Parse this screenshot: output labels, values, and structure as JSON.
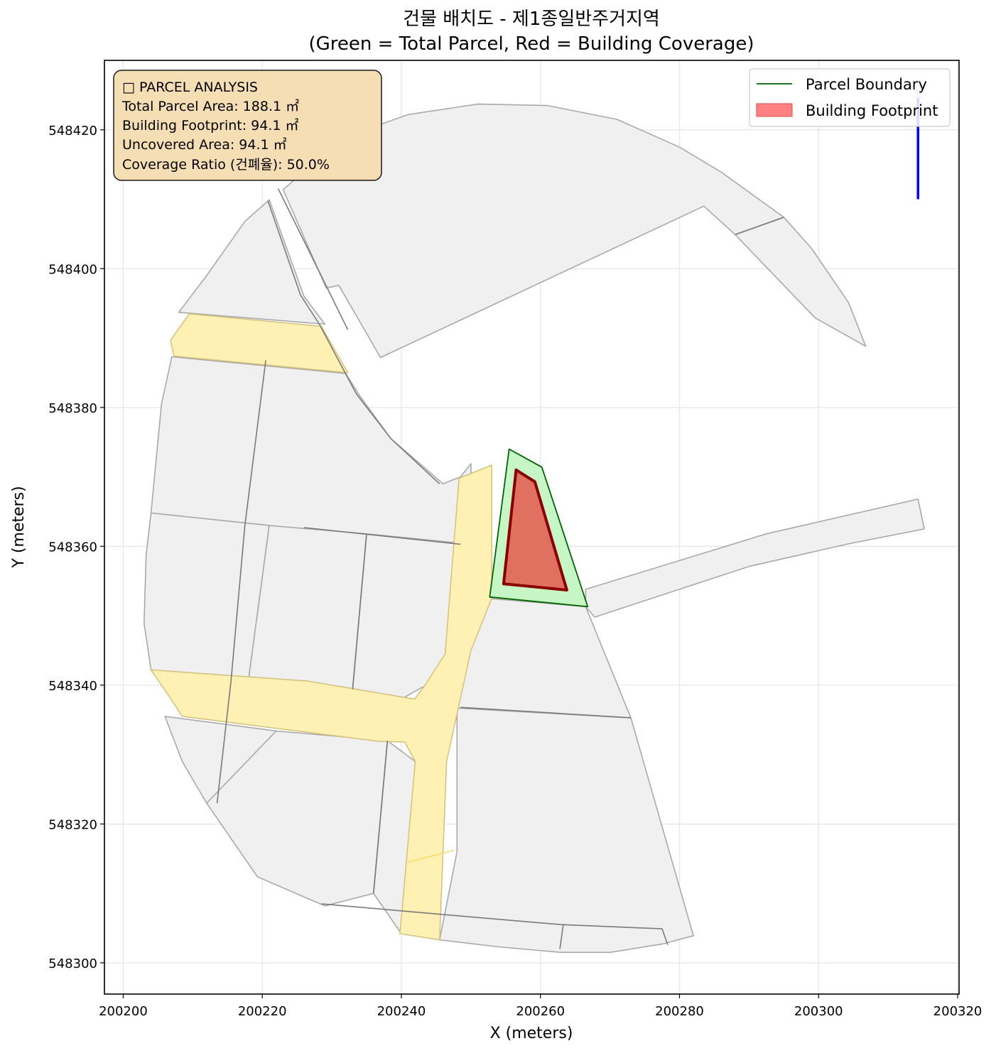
{
  "chart_data": {
    "type": "map",
    "title_lines": [
      "건물 배치도 - 제1종일반주거지역",
      "(Green = Total Parcel, Red = Building Coverage)"
    ],
    "xlabel": "X (meters)",
    "ylabel": "Y (meters)",
    "xlim": [
      200197.3,
      200320.2
    ],
    "ylim": [
      548295.5,
      548430.0
    ],
    "xticks": [
      200200,
      200220,
      200240,
      200260,
      200280,
      200300,
      200320
    ],
    "yticks": [
      548300,
      548320,
      548340,
      548360,
      548380,
      548400,
      548420
    ],
    "grid": true,
    "legend_position": "top-right",
    "legend": [
      {
        "label": "Parcel Boundary",
        "kind": "line",
        "color": "#006400"
      },
      {
        "label": "Building Footprint",
        "kind": "patch",
        "color": "#ff8080"
      }
    ],
    "info_box": {
      "lines": [
        "□ PARCEL ANALYSIS",
        "Total Parcel Area: 188.1 ㎡",
        "Building Footprint: 94.1 ㎡",
        "Uncovered Area: 94.1 ㎡",
        "Coverage Ratio (건폐율): 50.0%"
      ],
      "position": "top-left",
      "fill": "#f5deb3"
    },
    "metrics": {
      "total_parcel_area_m2": 188.1,
      "building_footprint_m2": 94.1,
      "uncovered_area_m2": 94.1,
      "coverage_ratio_percent": 50.0
    },
    "colors": {
      "neighbor_fill": "#f0f0f0",
      "neighbor_edge": "#a9a9a9",
      "road_fill": "#fff0b3",
      "road_edge": "#d4c07a",
      "parcel_fill": "#c6f5c6",
      "parcel_edge": "#006400",
      "building_fill": "#e07060",
      "building_edge": "#8b0000",
      "north_arrow": "#0000ff",
      "grid": "#e5e5e5"
    },
    "neighbor_parcels": [
      [
        [
          200229.2,
          548397.2
        ],
        [
          200223.0,
          548411.4
        ],
        [
          200232.0,
          548419.0
        ],
        [
          200241.0,
          548422.2
        ],
        [
          200251.0,
          548423.7
        ],
        [
          200261.0,
          548423.5
        ],
        [
          200271.0,
          548421.5
        ],
        [
          200280.0,
          548417.5
        ],
        [
          200286.0,
          548413.9
        ],
        [
          200295.0,
          548407.4
        ],
        [
          200288.0,
          548404.9
        ],
        [
          200283.5,
          548409.0
        ],
        [
          200237.0,
          548387.2
        ],
        [
          200231.0,
          548397.6
        ]
      ],
      [
        [
          200288.0,
          548404.9
        ],
        [
          200295.0,
          548407.4
        ],
        [
          200299.0,
          548402.9
        ],
        [
          200304.3,
          548395.1
        ],
        [
          200306.8,
          548388.8
        ],
        [
          200299.5,
          548392.9
        ]
      ],
      [
        [
          200208.0,
          548393.7
        ],
        [
          200212.0,
          548399.0
        ],
        [
          200217.5,
          548406.8
        ],
        [
          200221.0,
          548409.9
        ],
        [
          200226.0,
          548396.0
        ],
        [
          200229.0,
          548392.0
        ]
      ],
      [
        [
          200207.0,
          548387.3
        ],
        [
          200232.0,
          548384.9
        ],
        [
          200234.0,
          548381.7
        ],
        [
          200238.5,
          548375.5
        ],
        [
          200246.0,
          548369.0
        ],
        [
          200248.5,
          548370.0
        ],
        [
          200250.0,
          548371.9
        ],
        [
          200250.0,
          548360.0
        ],
        [
          200243.0,
          548360.0
        ],
        [
          200238.0,
          548361.0
        ],
        [
          200226.0,
          548362.0
        ],
        [
          200221.0,
          548363.0
        ],
        [
          200204.0,
          548364.8
        ],
        [
          200205.5,
          548380.5
        ]
      ],
      [
        [
          200204.0,
          548364.8
        ],
        [
          200221.0,
          548363.0
        ],
        [
          200218.0,
          548340.6
        ],
        [
          200204.0,
          548342.2
        ],
        [
          200203.0,
          548348.9
        ],
        [
          200203.3,
          548358.8
        ]
      ],
      [
        [
          200221.0,
          548363.0
        ],
        [
          200235.0,
          548361.8
        ],
        [
          200233.0,
          548339.4
        ],
        [
          200218.0,
          548340.6
        ]
      ],
      [
        [
          200235.0,
          548361.8
        ],
        [
          200248.0,
          548360.5
        ],
        [
          200248.0,
          548341.0
        ],
        [
          200243.0,
          548339.7
        ],
        [
          200240.0,
          548338.0
        ],
        [
          200233.0,
          548339.4
        ]
      ],
      [
        [
          200206.0,
          548335.5
        ],
        [
          200222.0,
          548333.4
        ],
        [
          200220.0,
          548321.0
        ],
        [
          200212.0,
          548323.0
        ],
        [
          200208.5,
          548329.0
        ]
      ],
      [
        [
          200222.0,
          548333.4
        ],
        [
          200238.0,
          548332.0
        ],
        [
          200236.0,
          548310.0
        ],
        [
          200229.0,
          548308.2
        ],
        [
          200219.3,
          548312.4
        ],
        [
          200212.0,
          548323.0
        ]
      ],
      [
        [
          200238.0,
          548332.0
        ],
        [
          200242.0,
          548329.0
        ],
        [
          200240.0,
          548304.2
        ],
        [
          200236.0,
          548310.0
        ]
      ],
      [
        [
          200248.0,
          548336.7
        ],
        [
          200273.0,
          548335.3
        ],
        [
          200282.0,
          548303.9
        ],
        [
          200277.5,
          548302.7
        ],
        [
          200270.0,
          548301.5
        ],
        [
          200263.0,
          548301.5
        ],
        [
          200254.0,
          548302.3
        ],
        [
          200245.5,
          548303.3
        ],
        [
          200248.0,
          548316.0
        ]
      ],
      [
        [
          200252.5,
          548352.5
        ],
        [
          200266.5,
          548351.3
        ],
        [
          200273.0,
          548335.3
        ],
        [
          200248.0,
          548336.7
        ],
        [
          200250.0,
          548347.0
        ]
      ],
      [
        [
          200266.5,
          548351.3
        ],
        [
          200266.5,
          548353.8
        ],
        [
          200292.5,
          548361.8
        ],
        [
          200314.3,
          548366.8
        ],
        [
          200315.2,
          548362.5
        ],
        [
          200304.5,
          548360.4
        ],
        [
          200290.0,
          548357.1
        ],
        [
          200267.8,
          548349.8
        ]
      ]
    ],
    "roads": [
      [
        [
          200209.5,
          548393.5
        ],
        [
          200228.5,
          548391.7
        ],
        [
          200232.3,
          548385.0
        ],
        [
          200207.3,
          548387.4
        ],
        [
          200206.8,
          548389.7
        ]
      ],
      [
        [
          200248.3,
          548369.8
        ],
        [
          200253.0,
          548371.7
        ],
        [
          200253.0,
          548352.5
        ],
        [
          200250.0,
          548345.0
        ],
        [
          200246.5,
          548329.0
        ],
        [
          200245.5,
          548303.3
        ],
        [
          200239.8,
          548304.2
        ],
        [
          200242.0,
          548329.0
        ],
        [
          200240.5,
          548331.8
        ],
        [
          200236.8,
          548331.9
        ],
        [
          200208.5,
          548335.5
        ],
        [
          200206.6,
          548338.4
        ],
        [
          200204.0,
          548342.2
        ],
        [
          200226.5,
          548340.6
        ],
        [
          200241.9,
          548338.0
        ],
        [
          200243.2,
          548339.7
        ],
        [
          200246.3,
          548344.5
        ]
      ]
    ],
    "road_centerline": [
      [
        200241.0,
        548314.5
      ],
      [
        200247.5,
        548316.2
      ]
    ],
    "interior_lines": [
      [
        [
          200222.3,
          548411.5
        ],
        [
          200229.3,
          548397.3
        ],
        [
          200232.3,
          548391.2
        ]
      ],
      [
        [
          200220.8,
          548409.8
        ],
        [
          200225.5,
          548396.2
        ],
        [
          200228.2,
          548392.0
        ],
        [
          200233.5,
          548382.0
        ],
        [
          200238.5,
          548375.5
        ],
        [
          200245.5,
          548369.0
        ]
      ],
      [
        [
          200220.5,
          548386.8
        ],
        [
          200217.5,
          548363.0
        ],
        [
          200215.5,
          548340.5
        ],
        [
          200213.5,
          548323.0
        ]
      ],
      [
        [
          200235.0,
          548361.8
        ],
        [
          200233.0,
          548339.4
        ]
      ],
      [
        [
          200226.0,
          548362.7
        ],
        [
          200248.5,
          548360.3
        ]
      ],
      [
        [
          200248.5,
          548336.8
        ],
        [
          200273.0,
          548335.3
        ]
      ],
      [
        [
          200238.0,
          548332.0
        ],
        [
          200236.0,
          548310.0
        ]
      ],
      [
        [
          200228.5,
          548308.5
        ],
        [
          200245.5,
          548307.0
        ],
        [
          200263.0,
          548305.5
        ],
        [
          200277.5,
          548304.9
        ],
        [
          200278.3,
          548302.6
        ]
      ],
      [
        [
          200263.3,
          548305.6
        ],
        [
          200262.8,
          548302.0
        ]
      ],
      [
        [
          200288.0,
          548404.9
        ],
        [
          200295.0,
          548407.4
        ]
      ]
    ],
    "parcel_polygon": [
      [
        200255.5,
        548374.0
      ],
      [
        200260.2,
        548371.4
      ],
      [
        200266.8,
        548351.3
      ],
      [
        200252.7,
        548352.7
      ]
    ],
    "building_polygon": [
      [
        200256.5,
        548371.0
      ],
      [
        200259.2,
        548369.3
      ],
      [
        200263.8,
        548353.7
      ],
      [
        200254.7,
        548354.6
      ]
    ],
    "north_arrow": {
      "x": 200314.3,
      "y_start": 548410.0,
      "y_end": 548426.0
    }
  }
}
